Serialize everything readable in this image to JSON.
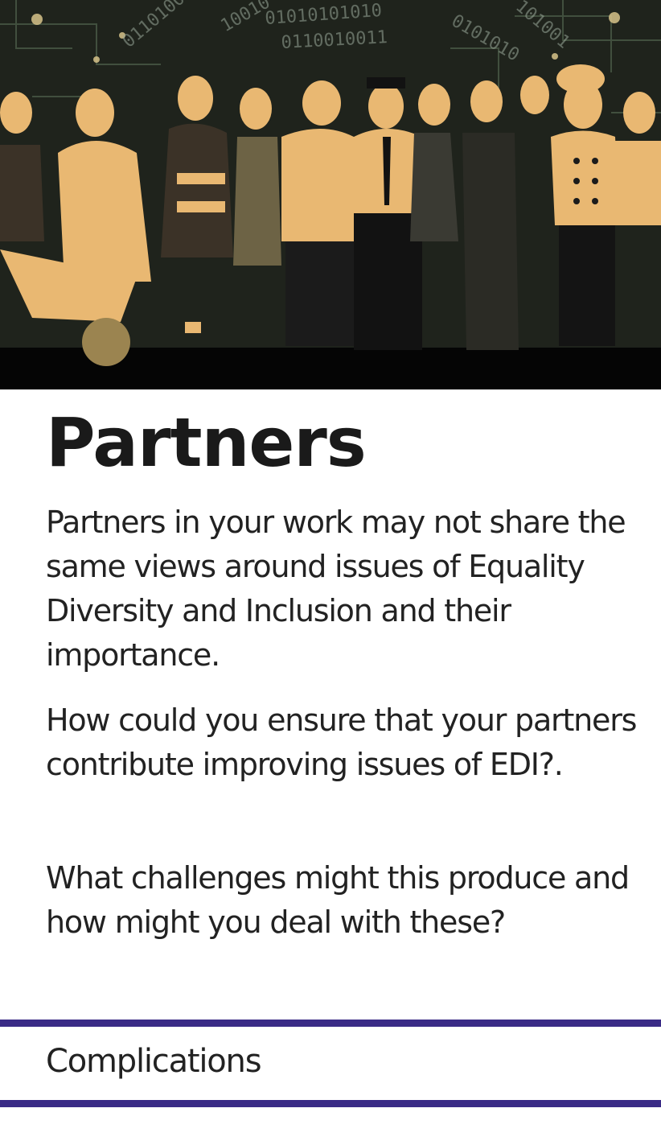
{
  "card": {
    "title": "Partners",
    "paragraphs": [
      "Partners in your work may not share the same views around issues of Equality Diversity and Inclusion and their importance.",
      "How could you ensure that your partners contribute improving issues of EDI?.",
      "What challenges might this produce and how might you deal with these?"
    ],
    "category": "Complications"
  },
  "colors": {
    "accent": "#3a2b86",
    "illustration_tone": "#e9b872",
    "illustration_background": "#1f231c"
  }
}
